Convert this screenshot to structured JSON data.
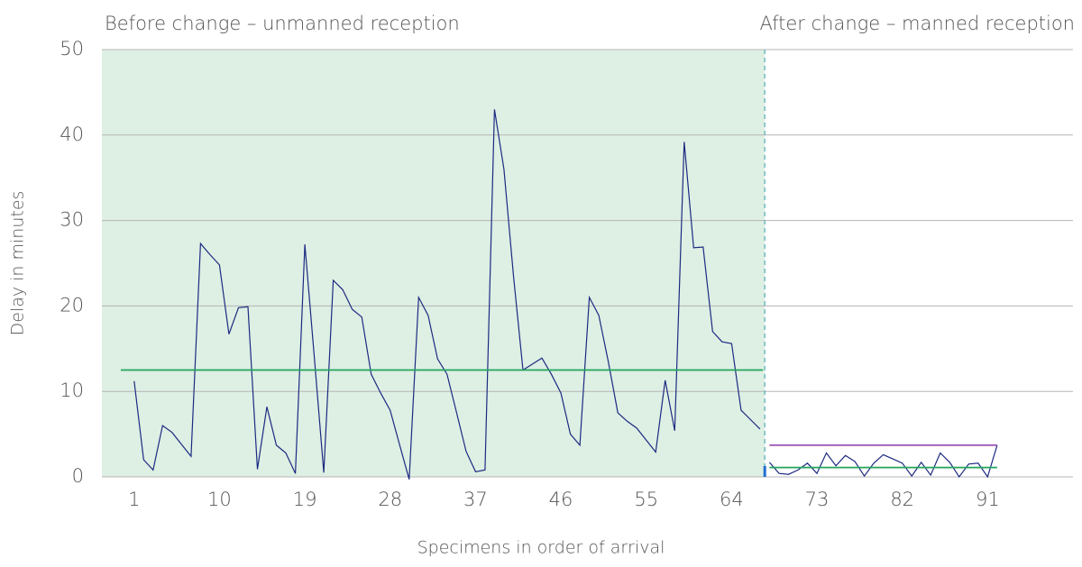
{
  "chart_data": {
    "type": "line",
    "annotations": [
      "Before change – unmanned reception",
      "After change – manned reception"
    ],
    "xlabel": "Specimens in order of arrival",
    "ylabel": "Delay in minutes",
    "xlim": [
      -2.4,
      100
    ],
    "xticks": [
      1,
      10,
      19,
      28,
      37,
      46,
      55,
      64,
      73,
      82,
      91
    ],
    "ylim": [
      0,
      50
    ],
    "yticks": [
      0,
      10,
      20,
      30,
      40,
      50
    ],
    "grid": true,
    "divider_x": 67.5,
    "shade_color": "#deefe4",
    "divider_color": "#5fb3b3",
    "series": [
      {
        "color": "#1c2a80",
        "x": [
          1,
          2,
          3,
          4,
          5,
          6,
          7,
          8,
          9,
          10,
          11,
          12,
          13,
          14,
          15,
          16,
          17,
          18,
          19,
          20,
          21,
          22,
          23,
          24,
          25,
          26,
          27,
          28,
          29,
          30,
          31,
          32,
          33,
          34,
          35,
          36,
          37,
          38,
          39,
          40,
          41,
          42,
          43,
          44,
          45,
          46,
          47,
          48,
          49,
          50,
          51,
          52,
          53,
          54,
          55,
          56,
          57,
          58,
          59,
          60,
          61,
          62,
          63,
          64,
          65,
          66,
          67
        ],
        "values": [
          11.2,
          2.0,
          0.8,
          6.0,
          5.2,
          3.8,
          2.4,
          27.3,
          26,
          24.8,
          16.7,
          19.8,
          19.9,
          0.9,
          8.2,
          3.7,
          2.8,
          0.4,
          27.2,
          14,
          0.5,
          23,
          21.9,
          19.6,
          18.7,
          12,
          9.8,
          7.8,
          3.7,
          -0.3,
          21,
          18.9,
          13.8,
          12,
          7.5,
          3,
          0.6,
          0.8,
          43,
          36,
          23.5,
          12.5,
          13.2,
          13.9,
          12,
          9.8,
          5,
          3.7,
          21,
          18.9,
          13.5,
          7.5,
          6.5,
          5.7,
          4.3,
          2.9,
          11.3,
          5.4,
          39.2,
          26.8,
          26.9,
          17,
          15.8,
          15.6,
          7.8,
          6.7,
          5.6
        ]
      },
      {
        "color": "#1c2a80",
        "x": [
          68,
          69,
          70,
          71,
          72,
          73,
          74,
          75,
          76,
          77,
          78,
          79,
          80,
          81,
          82,
          83,
          84,
          85,
          86,
          87,
          88,
          89,
          90,
          91,
          92
        ],
        "values": [
          1.7,
          0.4,
          0.3,
          0.8,
          1.6,
          0.4,
          2.8,
          1.3,
          2.5,
          1.8,
          0.1,
          1.6,
          2.6,
          2.1,
          1.6,
          0.1,
          1.7,
          0.2,
          2.8,
          1.7,
          0.0,
          1.5,
          1.6,
          0.0,
          3.7
        ]
      },
      {
        "color": "#22a55a",
        "x": [
          -0.4,
          67.3
        ],
        "values": [
          12.5,
          12.5
        ]
      },
      {
        "color": "#22a55a",
        "x": [
          68,
          92
        ],
        "values": [
          1.1,
          1.1
        ]
      },
      {
        "color": "#9b55b5",
        "x": [
          68,
          92
        ],
        "values": [
          3.7,
          3.7
        ]
      }
    ]
  }
}
